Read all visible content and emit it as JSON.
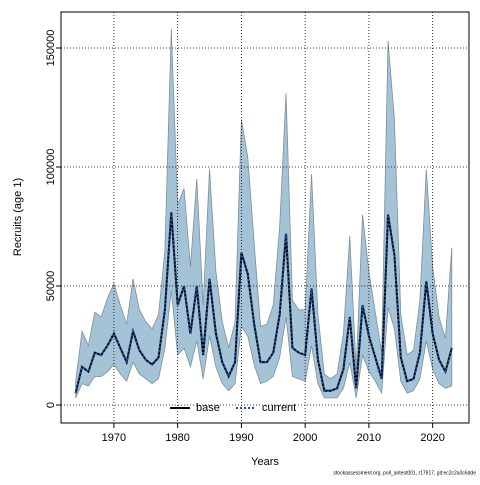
{
  "chart_data": {
    "type": "line",
    "x_label": "Years",
    "y_label": "Recruits (age 1)",
    "footnote": "stockassessment.org, poll_antest001, r17917, git:ec2c2a0c6dde",
    "x": [
      1964,
      1965,
      1966,
      1967,
      1968,
      1969,
      1970,
      1971,
      1972,
      1973,
      1974,
      1975,
      1976,
      1977,
      1978,
      1979,
      1980,
      1981,
      1982,
      1983,
      1984,
      1985,
      1986,
      1987,
      1988,
      1989,
      1990,
      1991,
      1992,
      1993,
      1994,
      1995,
      1996,
      1997,
      1998,
      1999,
      2000,
      2001,
      2002,
      2003,
      2004,
      2005,
      2006,
      2007,
      2008,
      2009,
      2010,
      2011,
      2012,
      2013,
      2014,
      2015,
      2016,
      2017,
      2018,
      2019,
      2020,
      2021,
      2022,
      2023
    ],
    "band": {
      "color": "#a4c3d6",
      "lower": [
        3000,
        9000,
        8000,
        12000,
        12000,
        14000,
        17000,
        13000,
        10000,
        18000,
        13000,
        11000,
        9000,
        11000,
        24000,
        48000,
        21000,
        24000,
        16000,
        27000,
        11000,
        29000,
        16000,
        9000,
        6000,
        9000,
        33000,
        29000,
        17000,
        9000,
        10000,
        12000,
        20000,
        37000,
        12000,
        11000,
        10000,
        25000,
        9000,
        3000,
        3000,
        3000,
        7000,
        18000,
        3000,
        21000,
        14000,
        10000,
        5000,
        41000,
        32000,
        10000,
        5000,
        6000,
        11000,
        27000,
        15000,
        9000,
        7000,
        8000
      ],
      "upper": [
        10000,
        31000,
        25000,
        39000,
        37000,
        45000,
        51000,
        42000,
        34000,
        53000,
        40000,
        35000,
        32000,
        38000,
        65000,
        158000,
        84000,
        91000,
        58000,
        95000,
        42000,
        99000,
        56000,
        35000,
        24000,
        35000,
        120000,
        104000,
        68000,
        33000,
        34000,
        42000,
        75000,
        131000,
        44000,
        40000,
        40000,
        97000,
        38000,
        13000,
        11000,
        13000,
        30000,
        71000,
        15000,
        80000,
        56000,
        39000,
        22000,
        153000,
        120000,
        38000,
        21000,
        23000,
        44000,
        99000,
        58000,
        37000,
        28000,
        66000
      ]
    },
    "series": [
      {
        "name": "base",
        "color": "#000000",
        "values": [
          5000,
          16000,
          14000,
          22000,
          21000,
          25000,
          30000,
          24000,
          18000,
          31000,
          23000,
          19000,
          17000,
          20000,
          40000,
          81000,
          42000,
          50000,
          30000,
          50000,
          21000,
          53000,
          30000,
          18000,
          12000,
          18000,
          64000,
          55000,
          34000,
          18000,
          18000,
          22000,
          38000,
          72000,
          24000,
          22000,
          21000,
          49000,
          19000,
          6000,
          6000,
          7000,
          15000,
          37000,
          7000,
          42000,
          29000,
          20000,
          11000,
          80000,
          63000,
          20000,
          10000,
          11000,
          22000,
          52000,
          30000,
          19000,
          14000,
          24000
        ]
      },
      {
        "name": "current",
        "color": "#1f4e9a",
        "values": [
          5000,
          16000,
          14000,
          22000,
          21000,
          25000,
          30000,
          24000,
          18000,
          31000,
          23000,
          19000,
          17000,
          20000,
          40000,
          81000,
          42000,
          50000,
          30000,
          50000,
          21000,
          53000,
          30000,
          18000,
          12000,
          18000,
          64000,
          55000,
          34000,
          18000,
          18000,
          22000,
          38000,
          72000,
          24000,
          22000,
          21000,
          49000,
          19000,
          6000,
          6000,
          7000,
          15000,
          37000,
          7000,
          42000,
          29000,
          20000,
          11000,
          80000,
          63000,
          20000,
          10000,
          11000,
          22000,
          52000,
          30000,
          19000,
          14000,
          24000
        ]
      }
    ],
    "xlim": [
      1961.7,
      2025.7
    ],
    "ylim": [
      -7563,
      165126
    ],
    "xticks": [
      1970,
      1980,
      1990,
      2000,
      2010,
      2020
    ],
    "yticks": [
      0,
      50000,
      100000,
      150000
    ],
    "grid": true,
    "legend": "bottom"
  }
}
